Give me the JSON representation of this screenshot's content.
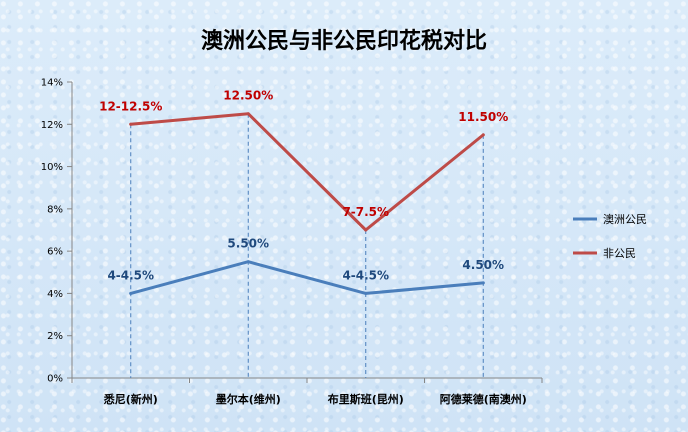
{
  "chart_data": {
    "type": "line",
    "title": "澳洲公民与非公民印花税对比",
    "categories": [
      "悉尼(新州)",
      "墨尔本(维州)",
      "布里斯班(昆州)",
      "阿德莱德(南澳州)"
    ],
    "ylim": [
      0,
      14
    ],
    "yticks": [
      "0%",
      "2%",
      "4%",
      "6%",
      "8%",
      "10%",
      "12%",
      "14%"
    ],
    "grid": false,
    "legend_position": "right",
    "series": [
      {
        "name": "澳洲公民",
        "color": "#4a7ebb",
        "values": [
          4,
          5.5,
          4,
          4.5
        ],
        "labels": [
          "4-4.5%",
          "5.50%",
          "4-4.5%",
          "4.50%"
        ]
      },
      {
        "name": "非公民",
        "color": "#be4b48",
        "values": [
          12,
          12.5,
          7,
          11.5
        ],
        "labels": [
          "12-12.5%",
          "12.50%",
          "7-7.5%",
          "11.50%"
        ]
      }
    ]
  },
  "colors": {
    "citizen_label": "#1f497d",
    "noncitizen_label": "#c00000",
    "drop_line": "#4a7ebb"
  }
}
